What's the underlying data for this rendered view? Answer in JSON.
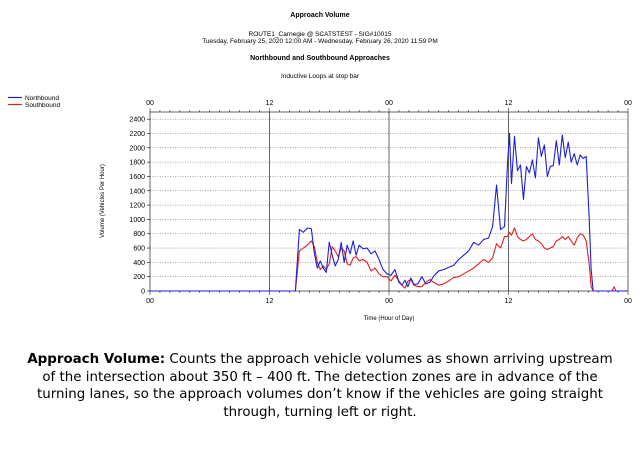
{
  "chart_data": {
    "type": "line",
    "title": "Approach Volume",
    "subtitle_lines": [
      "ROUTE1_Carnegie @ SCATSTEST - SIG#10015",
      "Tuesday, February 25, 2020 12:00 AM - Wednesday, February 26, 2020 11:59 PM"
    ],
    "chart_subtitle": "Northbound and Southbound Approaches",
    "chart_note": "Inductive Loops at stop bar",
    "xlabel": "Time (Hour of Day)",
    "ylabel": "Volume (Vehicles Per Hour)",
    "xlim": [
      0,
      48
    ],
    "ylim": [
      0,
      2500
    ],
    "x_ticks": [
      {
        "value": 0,
        "label": "00"
      },
      {
        "value": 12,
        "label": "12"
      },
      {
        "value": 24,
        "label": "00"
      },
      {
        "value": 36,
        "label": "12"
      },
      {
        "value": 48,
        "label": "00"
      }
    ],
    "y_ticks": [
      0,
      200,
      400,
      600,
      800,
      1000,
      1200,
      1400,
      1600,
      1800,
      2000,
      2200,
      2400
    ],
    "grid": true,
    "legend_position": "top-left",
    "series": [
      {
        "name": "Northbound",
        "color": "#1f1fd6",
        "points": [
          [
            0,
            0
          ],
          [
            14.6,
            0
          ],
          [
            15,
            860
          ],
          [
            15.4,
            820
          ],
          [
            15.8,
            880
          ],
          [
            16.2,
            870
          ],
          [
            16.5,
            530
          ],
          [
            16.8,
            320
          ],
          [
            17.1,
            420
          ],
          [
            17.4,
            320
          ],
          [
            17.7,
            260
          ],
          [
            18,
            680
          ],
          [
            18.3,
            500
          ],
          [
            18.6,
            350
          ],
          [
            18.9,
            440
          ],
          [
            19.2,
            680
          ],
          [
            19.5,
            400
          ],
          [
            19.8,
            640
          ],
          [
            20.1,
            520
          ],
          [
            20.4,
            700
          ],
          [
            20.7,
            500
          ],
          [
            21,
            640
          ],
          [
            21.4,
            590
          ],
          [
            21.8,
            600
          ],
          [
            22.2,
            520
          ],
          [
            22.6,
            560
          ],
          [
            23,
            440
          ],
          [
            23.4,
            300
          ],
          [
            23.8,
            240
          ],
          [
            24.2,
            220
          ],
          [
            24.6,
            300
          ],
          [
            25,
            120
          ],
          [
            25.3,
            80
          ],
          [
            25.6,
            150
          ],
          [
            25.9,
            60
          ],
          [
            26.2,
            180
          ],
          [
            26.5,
            90
          ],
          [
            26.9,
            100
          ],
          [
            27.3,
            200
          ],
          [
            27.7,
            100
          ],
          [
            28.1,
            120
          ],
          [
            28.5,
            210
          ],
          [
            29,
            280
          ],
          [
            29.5,
            300
          ],
          [
            30,
            330
          ],
          [
            30.5,
            360
          ],
          [
            31,
            440
          ],
          [
            31.5,
            500
          ],
          [
            32,
            560
          ],
          [
            32.5,
            680
          ],
          [
            33,
            640
          ],
          [
            33.5,
            720
          ],
          [
            34,
            740
          ],
          [
            34.4,
            900
          ],
          [
            34.8,
            1480
          ],
          [
            35.2,
            860
          ],
          [
            35.6,
            900
          ],
          [
            35.9,
            1780
          ],
          [
            36.1,
            2200
          ],
          [
            36.3,
            1500
          ],
          [
            36.6,
            2160
          ],
          [
            36.9,
            1680
          ],
          [
            37.2,
            1760
          ],
          [
            37.5,
            1280
          ],
          [
            37.8,
            1740
          ],
          [
            38.1,
            1650
          ],
          [
            38.4,
            1830
          ],
          [
            38.7,
            1580
          ],
          [
            39,
            2140
          ],
          [
            39.3,
            1880
          ],
          [
            39.6,
            2040
          ],
          [
            39.9,
            1600
          ],
          [
            40.2,
            1740
          ],
          [
            40.5,
            1750
          ],
          [
            40.8,
            2100
          ],
          [
            41.1,
            1760
          ],
          [
            41.4,
            2180
          ],
          [
            41.7,
            1860
          ],
          [
            42,
            2080
          ],
          [
            42.3,
            1800
          ],
          [
            42.6,
            1920
          ],
          [
            42.9,
            1760
          ],
          [
            43.2,
            1900
          ],
          [
            43.5,
            1850
          ],
          [
            43.8,
            1880
          ],
          [
            44.1,
            1020
          ],
          [
            44.3,
            300
          ],
          [
            44.5,
            0
          ],
          [
            48,
            0
          ]
        ]
      },
      {
        "name": "Southbound",
        "color": "#e02020",
        "points": [
          [
            0,
            0
          ],
          [
            14.6,
            0
          ],
          [
            15,
            560
          ],
          [
            15.4,
            600
          ],
          [
            15.8,
            640
          ],
          [
            16.2,
            700
          ],
          [
            16.5,
            620
          ],
          [
            16.8,
            400
          ],
          [
            17.1,
            300
          ],
          [
            17.4,
            350
          ],
          [
            17.7,
            300
          ],
          [
            18,
            380
          ],
          [
            18.3,
            620
          ],
          [
            18.6,
            560
          ],
          [
            18.9,
            480
          ],
          [
            19.2,
            600
          ],
          [
            19.5,
            560
          ],
          [
            19.8,
            380
          ],
          [
            20.1,
            360
          ],
          [
            20.4,
            460
          ],
          [
            20.7,
            480
          ],
          [
            21,
            420
          ],
          [
            21.4,
            440
          ],
          [
            21.8,
            400
          ],
          [
            22.2,
            280
          ],
          [
            22.6,
            320
          ],
          [
            23,
            240
          ],
          [
            23.4,
            200
          ],
          [
            23.8,
            200
          ],
          [
            24.2,
            140
          ],
          [
            24.6,
            220
          ],
          [
            25,
            140
          ],
          [
            25.3,
            80
          ],
          [
            25.6,
            40
          ],
          [
            25.9,
            140
          ],
          [
            26.2,
            160
          ],
          [
            26.5,
            80
          ],
          [
            26.9,
            60
          ],
          [
            27.3,
            60
          ],
          [
            27.7,
            120
          ],
          [
            28.1,
            160
          ],
          [
            28.5,
            120
          ],
          [
            29,
            80
          ],
          [
            29.5,
            100
          ],
          [
            30,
            140
          ],
          [
            30.5,
            190
          ],
          [
            31,
            200
          ],
          [
            31.5,
            240
          ],
          [
            32,
            280
          ],
          [
            32.5,
            320
          ],
          [
            33,
            380
          ],
          [
            33.5,
            440
          ],
          [
            34,
            400
          ],
          [
            34.4,
            460
          ],
          [
            34.8,
            660
          ],
          [
            35.2,
            600
          ],
          [
            35.6,
            760
          ],
          [
            35.9,
            760
          ],
          [
            36.1,
            820
          ],
          [
            36.3,
            780
          ],
          [
            36.6,
            880
          ],
          [
            36.9,
            760
          ],
          [
            37.2,
            720
          ],
          [
            37.5,
            700
          ],
          [
            37.8,
            720
          ],
          [
            38.1,
            760
          ],
          [
            38.4,
            800
          ],
          [
            38.7,
            720
          ],
          [
            39,
            700
          ],
          [
            39.3,
            660
          ],
          [
            39.6,
            600
          ],
          [
            39.9,
            580
          ],
          [
            40.2,
            600
          ],
          [
            40.5,
            620
          ],
          [
            40.8,
            700
          ],
          [
            41.1,
            720
          ],
          [
            41.4,
            760
          ],
          [
            41.7,
            720
          ],
          [
            42,
            760
          ],
          [
            42.3,
            700
          ],
          [
            42.6,
            640
          ],
          [
            42.9,
            740
          ],
          [
            43.2,
            800
          ],
          [
            43.5,
            780
          ],
          [
            43.8,
            700
          ],
          [
            44.1,
            380
          ],
          [
            44.3,
            60
          ],
          [
            44.5,
            0
          ],
          [
            46.4,
            0
          ],
          [
            46.6,
            60
          ],
          [
            46.8,
            0
          ],
          [
            48,
            0
          ]
        ]
      }
    ]
  },
  "caption": {
    "bold": "Approach Volume:",
    "text": " Counts the approach vehicle volumes as shown arriving upstream of the intersection about 350 ft – 400 ft. The detection zones are in advance of the turning lanes, so the approach volumes don’t know if the vehicles are going straight through, turning left or right."
  }
}
